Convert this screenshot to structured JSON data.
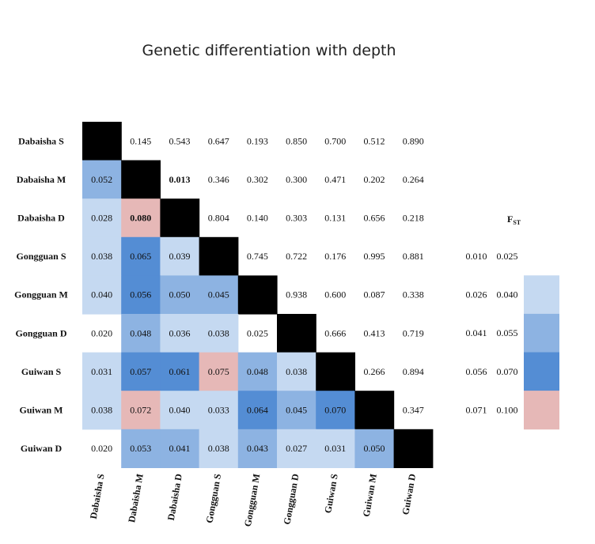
{
  "chart_data": {
    "type": "heatmap",
    "title": "Genetic differentiation with depth",
    "labels": [
      "Dabaisha S",
      "Dabaisha M",
      "Dabaisha D",
      "Gongguan S",
      "Gongguan M",
      "Gongguan D",
      "Guiwan S",
      "Guiwan M",
      "Guiwan D"
    ],
    "matrix": [
      [
        null,
        "0.145",
        "0.543",
        "0.647",
        "0.193",
        "0.850",
        "0.700",
        "0.512",
        "0.890"
      ],
      [
        "0.052",
        null,
        "0.013",
        "0.346",
        "0.302",
        "0.300",
        "0.471",
        "0.202",
        "0.264"
      ],
      [
        "0.028",
        "0.080",
        null,
        "0.804",
        "0.140",
        "0.303",
        "0.131",
        "0.656",
        "0.218"
      ],
      [
        "0.038",
        "0.065",
        "0.039",
        null,
        "0.745",
        "0.722",
        "0.176",
        "0.995",
        "0.881"
      ],
      [
        "0.040",
        "0.056",
        "0.050",
        "0.045",
        null,
        "0.938",
        "0.600",
        "0.087",
        "0.338"
      ],
      [
        "0.020",
        "0.048",
        "0.036",
        "0.038",
        "0.025",
        null,
        "0.666",
        "0.413",
        "0.719"
      ],
      [
        "0.031",
        "0.057",
        "0.061",
        "0.075",
        "0.048",
        "0.038",
        null,
        "0.266",
        "0.894"
      ],
      [
        "0.038",
        "0.072",
        "0.040",
        "0.033",
        "0.064",
        "0.045",
        "0.070",
        null,
        "0.347"
      ],
      [
        "0.020",
        "0.053",
        "0.041",
        "0.038",
        "0.043",
        "0.027",
        "0.031",
        "0.050",
        null
      ]
    ],
    "bold_cells": [
      [
        1,
        2
      ],
      [
        2,
        1
      ]
    ],
    "legend": {
      "title_main": "F",
      "title_sub": "ST",
      "bins": [
        {
          "low": "0.010",
          "high": "0.025",
          "color": null
        },
        {
          "low": "0.026",
          "high": "0.040",
          "color": "#c5d9f1"
        },
        {
          "low": "0.041",
          "high": "0.055",
          "color": "#8db3e2"
        },
        {
          "low": "0.056",
          "high": "0.070",
          "color": "#548dd4"
        },
        {
          "low": "0.071",
          "high": "0.100",
          "color": "#e6b8b7"
        }
      ]
    },
    "diagonal_color": "#000000",
    "upper_color": "#ffffff"
  }
}
